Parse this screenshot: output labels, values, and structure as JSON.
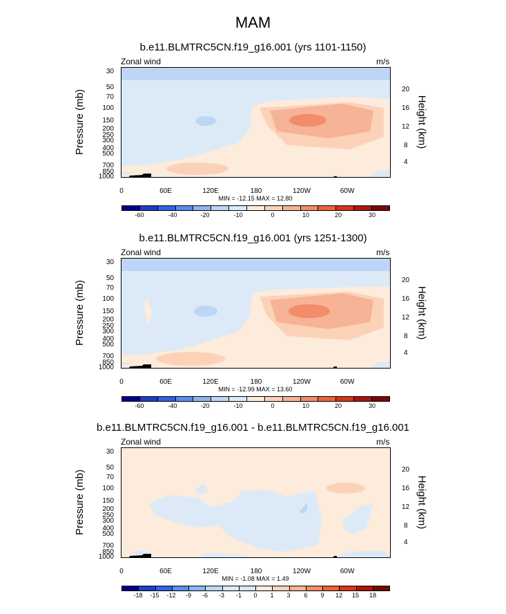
{
  "figure_title": "MAM",
  "panels": [
    {
      "title": "b.e11.BLMTRC5CN.f19_g16.001 (yrs 1101-1150)",
      "left_label": "Zonal wind",
      "right_label": "m/s",
      "minmax": "MIN = -12.15  MAX =  12.80",
      "levels": [
        "-60",
        "-40",
        "-20",
        "-10",
        "0",
        "10",
        "20",
        "30"
      ]
    },
    {
      "title": "b.e11.BLMTRC5CN.f19_g16.001 (yrs 1251-1300)",
      "left_label": "Zonal wind",
      "right_label": "m/s",
      "minmax": "MIN = -12.99  MAX =  13.60",
      "levels": [
        "-60",
        "-40",
        "-20",
        "-10",
        "0",
        "10",
        "20",
        "30"
      ]
    },
    {
      "title": "b.e11.BLMTRC5CN.f19_g16.001 - b.e11.BLMTRC5CN.f19_g16.001",
      "left_label": "Zonal wind",
      "right_label": "m/s",
      "minmax": "MIN = -1.08  MAX =  1.49",
      "levels": [
        "-18",
        "-15",
        "-12",
        "-9",
        "-6",
        "-3",
        "-1",
        "0",
        "1",
        "3",
        "6",
        "9",
        "12",
        "15",
        "18"
      ]
    }
  ],
  "axes": {
    "ylabel": "Pressure (mb)",
    "ylabel_right": "Height (km)",
    "pressure_ticks": [
      "30",
      "50",
      "70",
      "100",
      "150",
      "200",
      "250",
      "300",
      "400",
      "500",
      "700",
      "850",
      "1000"
    ],
    "height_ticks": [
      "20",
      "16",
      "12",
      "8",
      "4"
    ],
    "x_ticks": [
      "0",
      "60E",
      "120E",
      "180",
      "120W",
      "60W"
    ]
  },
  "colors": {
    "abs_scale": [
      "#00008b",
      "#1e3fc8",
      "#2f62e6",
      "#5b8cf0",
      "#8fb2f2",
      "#bdd6f5",
      "#dceaf8",
      "#fdebdc",
      "#fbd2b8",
      "#f7b395",
      "#f38c6a",
      "#ee6237",
      "#d83519",
      "#b0140e",
      "#7a0707"
    ],
    "diff_scale": [
      "#00008b",
      "#1e3fc8",
      "#2f62e6",
      "#5b8cf0",
      "#8fb2f2",
      "#bdd6f5",
      "#dceaf8",
      "#d8e7f8",
      "#fdebdc",
      "#fbd2b8",
      "#f7b395",
      "#f38c6a",
      "#ee6237",
      "#d83519",
      "#b0140e",
      "#7a0707"
    ]
  },
  "chart_data": [
    {
      "type": "contour",
      "title": "b.e11.BLMTRC5CN.f19_g16.001 (yrs 1101-1150)",
      "variable": "Zonal wind",
      "units": "m/s",
      "xlabel": "",
      "ylabel": "Pressure (mb)",
      "y2label": "Height (km)",
      "x_range": [
        0,
        360
      ],
      "y_range_mb": [
        1000,
        30
      ],
      "min": -12.15,
      "max": 12.8
    },
    {
      "type": "contour",
      "title": "b.e11.BLMTRC5CN.f19_g16.001 (yrs 1251-1300)",
      "variable": "Zonal wind",
      "units": "m/s",
      "xlabel": "",
      "ylabel": "Pressure (mb)",
      "y2label": "Height (km)",
      "x_range": [
        0,
        360
      ],
      "y_range_mb": [
        1000,
        30
      ],
      "min": -12.99,
      "max": 13.6
    },
    {
      "type": "contour",
      "title": "b.e11.BLMTRC5CN.f19_g16.001 - b.e11.BLMTRC5CN.f19_g16.001",
      "variable": "Zonal wind",
      "units": "m/s",
      "xlabel": "",
      "ylabel": "Pressure (mb)",
      "y2label": "Height (km)",
      "x_range": [
        0,
        360
      ],
      "y_range_mb": [
        1000,
        30
      ],
      "min": -1.08,
      "max": 1.49
    }
  ]
}
